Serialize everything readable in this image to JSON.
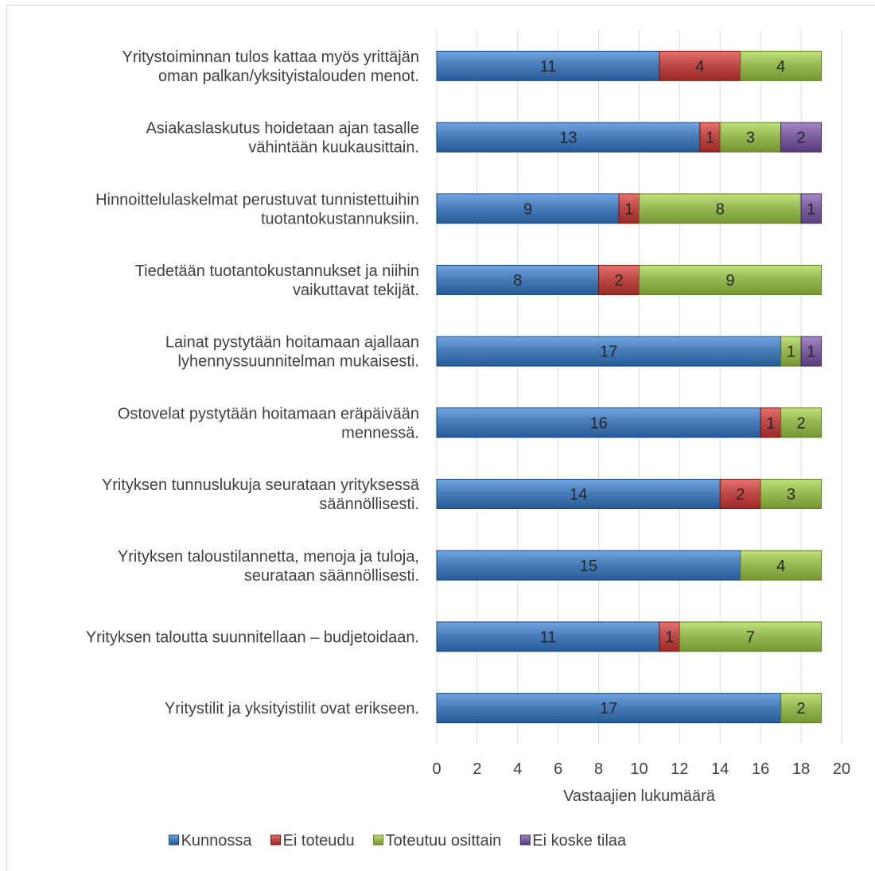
{
  "chart_data": {
    "type": "bar",
    "orientation": "horizontal",
    "stacked": true,
    "categories": [
      [
        "Yritystoiminnan tulos kattaa myös yrittäjän",
        "oman palkan/yksityistalouden menot."
      ],
      [
        "Asiakaslaskutus hoidetaan ajan tasalle",
        "vähintään kuukausittain."
      ],
      [
        "Hinnoittelulaskelmat perustuvat tunnistettuihin",
        "tuotantokustannuksiin."
      ],
      [
        "Tiedetään tuotantokustannukset ja niihin",
        "vaikuttavat tekijät."
      ],
      [
        "Lainat pystytään hoitamaan ajallaan",
        "lyhennyssuunnitelman mukaisesti."
      ],
      [
        "Ostovelat pystytään hoitamaan eräpäivään",
        "mennessä."
      ],
      [
        "Yrityksen tunnuslukuja seurataan yrityksessä",
        "säännöllisesti."
      ],
      [
        "Yrityksen taloustilannetta, menoja ja tuloja,",
        "seurataan säännöllisesti."
      ],
      [
        "Yrityksen taloutta suunnitellaan – budjetoidaan."
      ],
      [
        "Yritystilit ja yksityistilit ovat erikseen."
      ]
    ],
    "series": [
      {
        "name": "Kunnossa",
        "color": "#4a7ebb",
        "values": [
          11,
          13,
          9,
          8,
          17,
          16,
          14,
          15,
          11,
          17
        ]
      },
      {
        "name": "Ei toteudu",
        "color": "#be4b48",
        "values": [
          4,
          1,
          1,
          2,
          0,
          1,
          2,
          0,
          1,
          0
        ]
      },
      {
        "name": "Toteutuu osittain",
        "color": "#98b954",
        "values": [
          4,
          3,
          8,
          9,
          1,
          2,
          3,
          4,
          7,
          2
        ]
      },
      {
        "name": "Ei koske tilaa",
        "color": "#7d60a0",
        "values": [
          0,
          2,
          1,
          0,
          1,
          0,
          0,
          0,
          0,
          0
        ]
      }
    ],
    "xlim": [
      0,
      20
    ],
    "xticks": [
      0,
      2,
      4,
      6,
      8,
      10,
      12,
      14,
      16,
      18,
      20
    ],
    "xlabel": "Vastaajien lukumäärä",
    "grid": true,
    "legend_position": "bottom"
  }
}
